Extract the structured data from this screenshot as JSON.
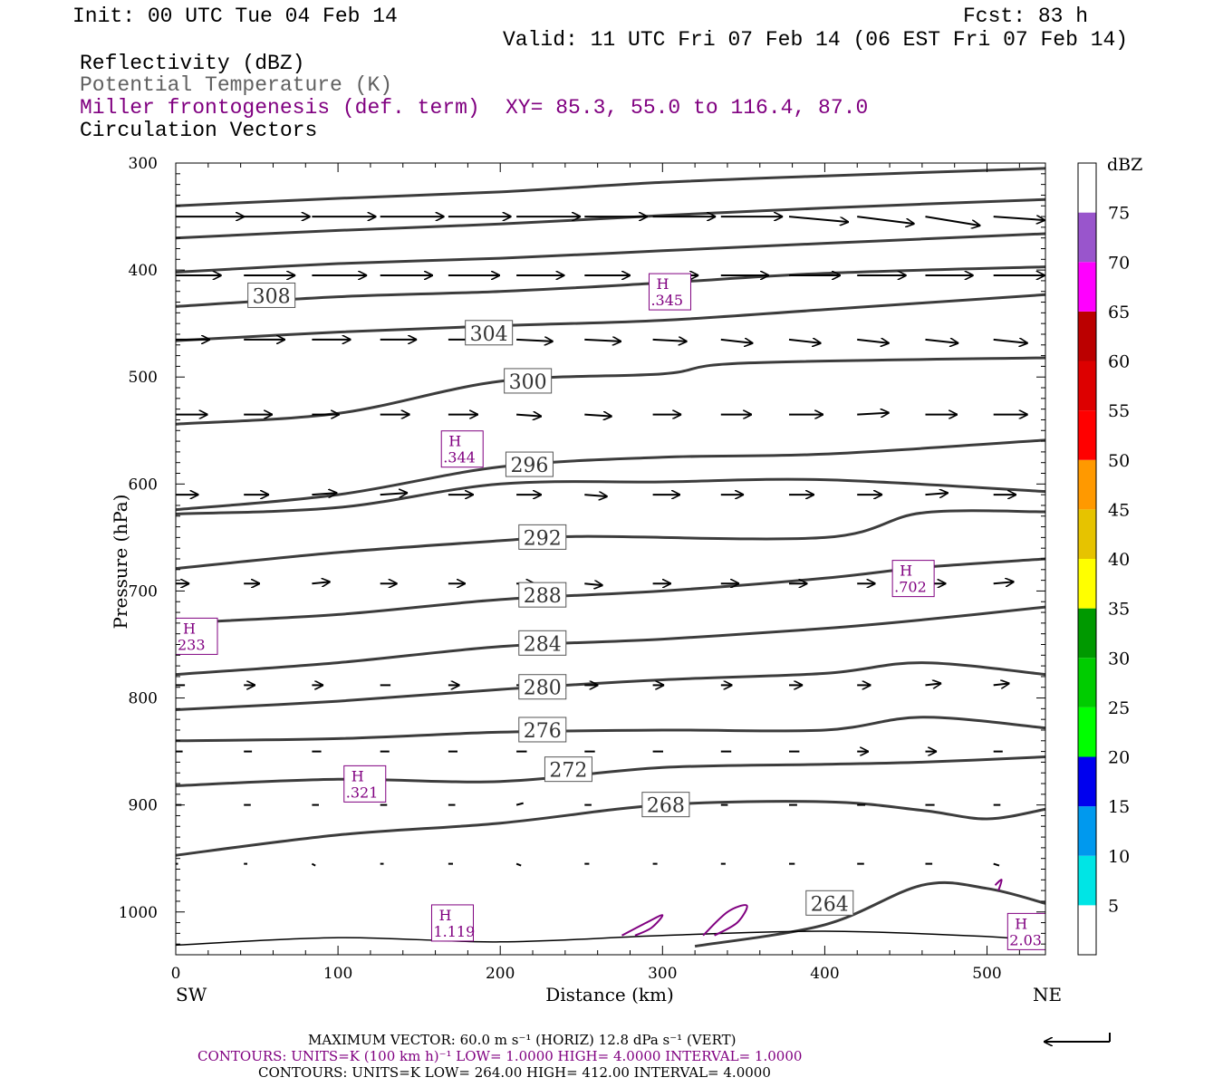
{
  "header": {
    "init": "Init: 00 UTC Tue 04 Feb 14",
    "fcst": "Fcst:   83 h",
    "valid": "Valid: 11 UTC Fri 07 Feb 14 (06 EST Fri 07 Feb 14)",
    "fields": {
      "reflectivity": "Reflectivity (dBZ)",
      "theta": "Potential Temperature (K)",
      "frontogenesis": "Miller frontogenesis (def. term)",
      "xy": "XY=  85.3, 55.0 to 116.4, 87.0",
      "vectors": "Circulation Vectors"
    }
  },
  "colorbar": {
    "title": "dBZ",
    "levels": [
      "5",
      "10",
      "15",
      "20",
      "25",
      "30",
      "35",
      "40",
      "45",
      "50",
      "55",
      "60",
      "65",
      "70",
      "75"
    ],
    "colors": [
      "#ffffff",
      "#00e5e5",
      "#0099ee",
      "#0000ee",
      "#00ff00",
      "#00cc00",
      "#009900",
      "#ffff00",
      "#e6c300",
      "#ff9900",
      "#ff0000",
      "#dd0000",
      "#bb0000",
      "#ff00ff",
      "#9955cc",
      "#ffffff"
    ]
  },
  "chart_data": {
    "type": "line",
    "xlabel": "Distance (km)",
    "ylabel": "Pressure (hPa)",
    "xlim": [
      0,
      536
    ],
    "ylim": [
      1040,
      300
    ],
    "x_ticks": [
      "0",
      "100",
      "200",
      "300",
      "400",
      "500"
    ],
    "x_tick_values": [
      0,
      100,
      200,
      300,
      400,
      500
    ],
    "y_ticks": [
      "300",
      "400",
      "500",
      "600",
      "700",
      "800",
      "900",
      "1000"
    ],
    "y_tick_values": [
      300,
      400,
      500,
      600,
      700,
      800,
      900,
      1000
    ],
    "left_end": "SW",
    "right_end": "NE",
    "theta_contours": [
      {
        "label": "308",
        "label_at": [
          59,
          424
        ],
        "points": [
          [
            0,
            340
          ],
          [
            100,
            333
          ],
          [
            200,
            327
          ],
          [
            300,
            318
          ],
          [
            400,
            312
          ],
          [
            536,
            305
          ]
        ]
      },
      {
        "label": "",
        "label_at": null,
        "points": [
          [
            0,
            370
          ],
          [
            100,
            363
          ],
          [
            200,
            357
          ],
          [
            300,
            349
          ],
          [
            400,
            342
          ],
          [
            536,
            334
          ]
        ]
      },
      {
        "label": "",
        "label_at": null,
        "points": [
          [
            0,
            402
          ],
          [
            100,
            394
          ],
          [
            200,
            389
          ],
          [
            300,
            382
          ],
          [
            400,
            375
          ],
          [
            536,
            366
          ]
        ]
      },
      {
        "label": "",
        "label_at": null,
        "points": [
          [
            0,
            434
          ],
          [
            100,
            425
          ],
          [
            200,
            420
          ],
          [
            300,
            412
          ],
          [
            400,
            403
          ],
          [
            536,
            397
          ]
        ]
      },
      {
        "label": "304",
        "label_at": [
          193,
          459
        ],
        "points": [
          [
            0,
            466
          ],
          [
            100,
            458
          ],
          [
            200,
            452
          ],
          [
            300,
            447
          ],
          [
            400,
            437
          ],
          [
            536,
            423
          ]
        ]
      },
      {
        "label": "300",
        "label_at": [
          217,
          504
        ],
        "points": [
          [
            0,
            544
          ],
          [
            100,
            534
          ],
          [
            200,
            504
          ],
          [
            300,
            497
          ],
          [
            350,
            487
          ],
          [
            536,
            482
          ]
        ]
      },
      {
        "label": "296",
        "label_at": [
          218,
          582
        ],
        "points": [
          [
            0,
            624
          ],
          [
            100,
            610
          ],
          [
            200,
            584
          ],
          [
            300,
            575
          ],
          [
            400,
            572
          ],
          [
            536,
            559
          ]
        ]
      },
      {
        "label": "",
        "label_at": null,
        "points": [
          [
            0,
            628
          ],
          [
            100,
            622
          ],
          [
            200,
            600
          ],
          [
            300,
            598
          ],
          [
            400,
            596
          ],
          [
            536,
            607
          ]
        ]
      },
      {
        "label": "292",
        "label_at": [
          226,
          650
        ],
        "points": [
          [
            0,
            679
          ],
          [
            100,
            664
          ],
          [
            200,
            653
          ],
          [
            250,
            649
          ],
          [
            400,
            650
          ],
          [
            460,
            627
          ],
          [
            536,
            626
          ]
        ]
      },
      {
        "label": "288",
        "label_at": [
          226,
          704
        ],
        "points": [
          [
            0,
            730
          ],
          [
            100,
            722
          ],
          [
            200,
            708
          ],
          [
            300,
            700
          ],
          [
            400,
            688
          ],
          [
            460,
            678
          ],
          [
            536,
            670
          ]
        ]
      },
      {
        "label": "284",
        "label_at": [
          226,
          749
        ],
        "points": [
          [
            0,
            778
          ],
          [
            100,
            767
          ],
          [
            200,
            752
          ],
          [
            300,
            745
          ],
          [
            400,
            735
          ],
          [
            460,
            727
          ],
          [
            536,
            715
          ]
        ]
      },
      {
        "label": "280",
        "label_at": [
          226,
          790
        ],
        "points": [
          [
            0,
            811
          ],
          [
            100,
            803
          ],
          [
            200,
            792
          ],
          [
            300,
            783
          ],
          [
            400,
            777
          ],
          [
            460,
            767
          ],
          [
            536,
            778
          ]
        ]
      },
      {
        "label": "276",
        "label_at": [
          226,
          830
        ],
        "points": [
          [
            0,
            840
          ],
          [
            100,
            838
          ],
          [
            200,
            832
          ],
          [
            300,
            830
          ],
          [
            400,
            830
          ],
          [
            460,
            818
          ],
          [
            536,
            828
          ]
        ]
      },
      {
        "label": "272",
        "label_at": [
          242,
          867
        ],
        "points": [
          [
            0,
            882
          ],
          [
            100,
            876
          ],
          [
            200,
            878
          ],
          [
            300,
            865
          ],
          [
            400,
            862
          ],
          [
            460,
            860
          ],
          [
            536,
            855
          ]
        ]
      },
      {
        "label": "268",
        "label_at": [
          302,
          900
        ],
        "points": [
          [
            0,
            947
          ],
          [
            100,
            928
          ],
          [
            200,
            917
          ],
          [
            300,
            900
          ],
          [
            400,
            897
          ],
          [
            460,
            905
          ],
          [
            500,
            913
          ],
          [
            536,
            904
          ]
        ]
      },
      {
        "label": "264",
        "label_at": [
          403,
          992
        ],
        "points": [
          [
            320,
            1032
          ],
          [
            400,
            1012
          ],
          [
            460,
            975
          ],
          [
            500,
            978
          ],
          [
            536,
            992
          ]
        ]
      }
    ],
    "surface_line": [
      [
        0,
        1031
      ],
      [
        100,
        1024
      ],
      [
        200,
        1028
      ],
      [
        300,
        1022
      ],
      [
        400,
        1018
      ],
      [
        500,
        1023
      ],
      [
        536,
        1028
      ]
    ],
    "frontogenesis_maxima": [
      {
        "mark": "H",
        "value": ".345",
        "at": [
          304,
          422
        ]
      },
      {
        "mark": "H",
        "value": ".344",
        "at": [
          176,
          569
        ]
      },
      {
        "mark": "H",
        "value": ".702",
        "at": [
          454,
          690
        ]
      },
      {
        "mark": "H",
        "value": "233",
        "at": [
          9,
          744
        ]
      },
      {
        "mark": "H",
        "value": ".321",
        "at": [
          116,
          882
        ]
      },
      {
        "mark": "H",
        "value": "1.119",
        "at": [
          170,
          1012
        ]
      },
      {
        "mark": "H",
        "value": "2.03",
        "at": [
          525,
          1020
        ]
      }
    ],
    "frontogenesis_contour_1": [
      [
        275,
        1022
      ],
      [
        290,
        1010
      ],
      [
        300,
        1003
      ],
      [
        293,
        1015
      ],
      [
        283,
        1022
      ]
    ],
    "frontogenesis_contour_2": [
      [
        325,
        1022
      ],
      [
        340,
        1000
      ],
      [
        352,
        994
      ],
      [
        346,
        1010
      ],
      [
        332,
        1022
      ]
    ],
    "frontogenesis_contour_3": [
      [
        505,
        975
      ],
      [
        509,
        970
      ],
      [
        507,
        980
      ]
    ],
    "vectors": [
      {
        "p": 350,
        "x": [
          0,
          42,
          84,
          126,
          168,
          210,
          252,
          294,
          336,
          378,
          420,
          462,
          504
        ],
        "u": [
          60,
          58,
          56,
          56,
          55,
          56,
          55,
          55,
          54,
          52,
          50,
          48,
          45
        ],
        "w": [
          0,
          0,
          0,
          0,
          0,
          0,
          0,
          0,
          0,
          -3,
          -4,
          -5,
          -2
        ]
      },
      {
        "p": 405,
        "x": [
          0,
          42,
          84,
          126,
          168,
          210,
          252,
          294,
          336,
          378,
          420,
          462,
          504
        ],
        "u": [
          40,
          45,
          48,
          46,
          45,
          42,
          40,
          40,
          42,
          45,
          43,
          42,
          45
        ],
        "w": [
          0,
          0,
          0,
          0,
          0,
          0,
          0,
          0,
          0,
          0,
          0,
          0,
          0
        ]
      },
      {
        "p": 465,
        "x": [
          0,
          42,
          84,
          126,
          168,
          210,
          252,
          294,
          336,
          378,
          420,
          462,
          504
        ],
        "u": [
          30,
          36,
          34,
          32,
          32,
          32,
          32,
          30,
          28,
          28,
          28,
          29,
          30
        ],
        "w": [
          0,
          0,
          0,
          0,
          0,
          -1,
          -1,
          -1,
          -2,
          -2,
          -2,
          -2,
          -2
        ]
      },
      {
        "p": 535,
        "x": [
          0,
          42,
          84,
          126,
          168,
          210,
          252,
          294,
          336,
          378,
          420,
          462,
          504
        ],
        "u": [
          28,
          25,
          24,
          26,
          26,
          22,
          24,
          25,
          27,
          30,
          28,
          28,
          30
        ],
        "w": [
          0,
          0,
          0,
          0,
          0,
          -1,
          -1,
          0,
          0,
          0,
          1,
          0,
          0
        ]
      },
      {
        "p": 610,
        "x": [
          0,
          42,
          84,
          126,
          168,
          210,
          252,
          294,
          336,
          378,
          420,
          462,
          504
        ],
        "u": [
          20,
          22,
          22,
          24,
          22,
          22,
          20,
          24,
          20,
          22,
          22,
          20,
          20
        ],
        "w": [
          0,
          0,
          1,
          1,
          0,
          0,
          -1,
          0,
          0,
          0,
          0,
          1,
          0
        ]
      },
      {
        "p": 693,
        "x": [
          0,
          42,
          84,
          126,
          168,
          210,
          252,
          294,
          336,
          378,
          420,
          462,
          504
        ],
        "u": [
          12,
          14,
          16,
          15,
          15,
          16,
          16,
          16,
          16,
          16,
          16,
          18,
          18
        ],
        "w": [
          0,
          0,
          1,
          0,
          0,
          0,
          -1,
          0,
          0,
          0,
          0,
          0,
          1
        ]
      },
      {
        "p": 788,
        "x": [
          0,
          42,
          84,
          126,
          168,
          210,
          252,
          294,
          336,
          378,
          420,
          462,
          504
        ],
        "u": [
          8,
          10,
          10,
          9,
          10,
          10,
          12,
          10,
          10,
          12,
          12,
          14,
          14
        ],
        "w": [
          0,
          0,
          0,
          0,
          0,
          0,
          0,
          0,
          0,
          0,
          0,
          1,
          1
        ]
      },
      {
        "p": 850,
        "x": [
          0,
          42,
          84,
          126,
          168,
          210,
          252,
          294,
          336,
          378,
          420,
          462,
          504
        ],
        "u": [
          6,
          7,
          8,
          8,
          8,
          9,
          9,
          9,
          9,
          9,
          10,
          10,
          8
        ],
        "w": [
          0,
          0,
          0,
          0,
          0,
          0,
          0,
          0,
          0,
          0,
          0,
          0,
          0
        ]
      },
      {
        "p": 900,
        "x": [
          0,
          42,
          84,
          126,
          168,
          210,
          252,
          294,
          336,
          378,
          420,
          462,
          504
        ],
        "u": [
          5,
          6,
          6,
          6,
          6,
          6,
          6,
          6,
          6,
          7,
          7,
          8,
          6
        ],
        "w": [
          0,
          0,
          0,
          0,
          0,
          1,
          0,
          0,
          0,
          0,
          0,
          0,
          0
        ]
      },
      {
        "p": 955,
        "x": [
          0,
          42,
          84,
          126,
          168,
          210,
          252,
          294,
          336,
          378,
          420,
          462,
          504
        ],
        "u": [
          2,
          3,
          3,
          3,
          4,
          4,
          4,
          4,
          4,
          5,
          6,
          6,
          5
        ],
        "w": [
          0,
          0,
          -1,
          0,
          0,
          -1,
          0,
          0,
          0,
          0,
          0,
          0,
          -1
        ]
      }
    ]
  },
  "footer": {
    "max_vector": "MAXIMUM VECTOR:  60.0 m s⁻¹ (HORIZ)          12.8 dPa s⁻¹ (VERT)",
    "contours_purple": "CONTOURS:  UNITS=K (100 km h)⁻¹  LOW=   1.0000          HIGH=   4.0000          INTERVAL=    1.0000",
    "contours_black": "CONTOURS:  UNITS=K  LOW=   264.00          HIGH=   412.00          INTERVAL=    4.0000"
  },
  "colors": {
    "theta": "#3c3c3c",
    "vector": "#000000",
    "frontogenesis": "#800080"
  }
}
